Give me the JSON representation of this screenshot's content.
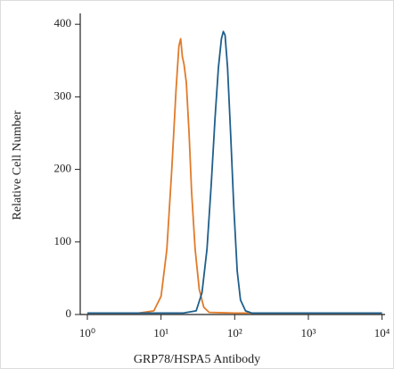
{
  "chart_data": {
    "type": "line",
    "xlabel": "GRP78/HSPA5 Antibody",
    "ylabel": "Relative Cell Number",
    "xscale": "log",
    "xlim": [
      0.8,
      11000
    ],
    "xticks": [
      {
        "value": 1,
        "label": "10⁰"
      },
      {
        "value": 10,
        "label": "10¹"
      },
      {
        "value": 100,
        "label": "10²"
      },
      {
        "value": 1000,
        "label": "10³"
      },
      {
        "value": 10000,
        "label": "10⁴"
      }
    ],
    "ylim": [
      0,
      415
    ],
    "yticks": [
      0,
      100,
      200,
      300,
      400
    ],
    "series": [
      {
        "color": "#e07b2a",
        "x": [
          1,
          5,
          8,
          10,
          12,
          14,
          16,
          17.5,
          18.5,
          19.5,
          20.5,
          22,
          24,
          26,
          29,
          33,
          38,
          45,
          100,
          1000,
          10000
        ],
        "values": [
          2,
          2,
          5,
          25,
          90,
          200,
          310,
          370,
          380,
          355,
          345,
          320,
          250,
          170,
          90,
          35,
          10,
          3,
          2,
          2,
          2
        ]
      },
      {
        "color": "#1f5f8b",
        "x": [
          1,
          20,
          30,
          36,
          42,
          48,
          54,
          60,
          66,
          70,
          74,
          80,
          88,
          97,
          108,
          120,
          140,
          170,
          1000,
          10000
        ],
        "values": [
          2,
          2,
          5,
          30,
          90,
          180,
          270,
          340,
          380,
          390,
          385,
          340,
          250,
          150,
          60,
          20,
          5,
          2,
          2,
          2
        ]
      }
    ]
  }
}
